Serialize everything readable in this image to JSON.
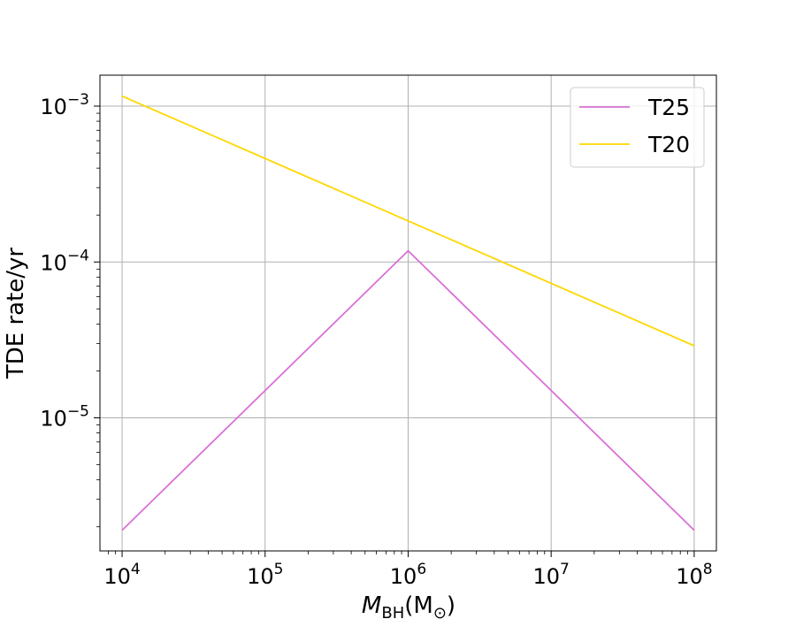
{
  "chart_data": {
    "type": "line",
    "title": "",
    "xlabel": {
      "main": "M",
      "subscript": "BH",
      "unit_main": "(M",
      "unit_sub": "⊙",
      "unit_close": ")"
    },
    "ylabel": "TDE rate/yr",
    "xscale": "log",
    "yscale": "log",
    "xlim": [
      7000,
      143000000
    ],
    "ylim": [
      1.4e-06,
      0.00158
    ],
    "grid": true,
    "legend_position": "top-right",
    "x_ticks": [
      {
        "value": 10000,
        "base": "10",
        "exp": "4"
      },
      {
        "value": 100000,
        "base": "10",
        "exp": "5"
      },
      {
        "value": 1000000,
        "base": "10",
        "exp": "6"
      },
      {
        "value": 10000000,
        "base": "10",
        "exp": "7"
      },
      {
        "value": 100000000,
        "base": "10",
        "exp": "8"
      }
    ],
    "y_ticks": [
      {
        "value": 1e-05,
        "base": "10",
        "exp": "−5"
      },
      {
        "value": 0.0001,
        "base": "10",
        "exp": "−4"
      },
      {
        "value": 0.001,
        "base": "10",
        "exp": "−3"
      }
    ],
    "series": [
      {
        "name": "T25",
        "color": "#da70d6",
        "x": [
          10000,
          1000000,
          100000000
        ],
        "y": [
          1.9e-06,
          0.000118,
          1.9e-06
        ]
      },
      {
        "name": "T20",
        "color": "#ffd700",
        "x": [
          10000,
          100000000
        ],
        "y": [
          0.00116,
          2.9e-05
        ]
      }
    ]
  }
}
